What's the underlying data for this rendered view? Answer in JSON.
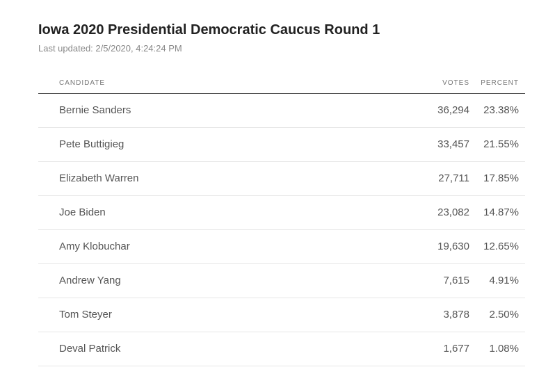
{
  "header": {
    "title": "Iowa 2020 Presidential Democratic Caucus Round 1",
    "subtitle": "Last updated: 2/5/2020, 4:24:24 PM"
  },
  "table": {
    "columns": [
      "CANDIDATE",
      "VOTES",
      "PERCENT"
    ],
    "rows": [
      [
        "Bernie Sanders",
        "36,294",
        "23.38%"
      ],
      [
        "Pete Buttigieg",
        "33,457",
        "21.55%"
      ],
      [
        "Elizabeth Warren",
        "27,711",
        "17.85%"
      ],
      [
        "Joe Biden",
        "23,082",
        "14.87%"
      ],
      [
        "Amy Klobuchar",
        "19,630",
        "12.65%"
      ],
      [
        "Andrew Yang",
        "7,615",
        "4.91%"
      ],
      [
        "Tom Steyer",
        "3,878",
        "2.50%"
      ],
      [
        "Deval Patrick",
        "1,677",
        "1.08%"
      ]
    ]
  }
}
